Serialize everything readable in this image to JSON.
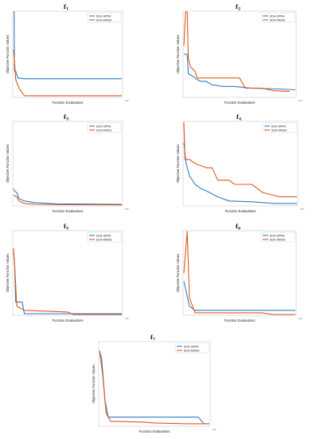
{
  "chart_data": [
    {
      "type": "line",
      "title_base": "f",
      "title_sub": "1",
      "xlabel": "Function Evaluations",
      "ylabel": "Objective Function Values",
      "x_exponent": "×10⁴",
      "legend_position": "top-right",
      "series": [
        {
          "name": "EDA-SPRA",
          "color": "#2e7fc4",
          "points": [
            [
              0,
              1.0
            ],
            [
              0.006,
              1.0
            ],
            [
              0.008,
              0.3
            ],
            [
              0.02,
              0.3
            ],
            [
              0.04,
              0.22
            ],
            [
              0.1,
              0.21
            ],
            [
              1.0,
              0.21
            ]
          ]
        },
        {
          "name": "EDA-MMSS",
          "color": "#e0581d",
          "points": [
            [
              0,
              0.55
            ],
            [
              0.01,
              0.4
            ],
            [
              0.02,
              0.2
            ],
            [
              0.05,
              0.1
            ],
            [
              0.1,
              0.01
            ],
            [
              1.0,
              0.01
            ]
          ]
        }
      ]
    },
    {
      "type": "line",
      "title_base": "f",
      "title_sub": "2",
      "xlabel": "Function Evaluations",
      "ylabel": "Objective Function Values",
      "x_exponent": "×10⁴",
      "legend_position": "top-right",
      "series": [
        {
          "name": "EDA-SPRA",
          "color": "#2e7fc4",
          "points": [
            [
              0,
              0.5
            ],
            [
              0.03,
              0.5
            ],
            [
              0.04,
              0.27
            ],
            [
              0.08,
              0.24
            ],
            [
              0.12,
              0.2
            ],
            [
              0.15,
              0.18
            ],
            [
              0.2,
              0.18
            ],
            [
              0.25,
              0.14
            ],
            [
              0.35,
              0.12
            ],
            [
              0.45,
              0.12
            ],
            [
              0.6,
              0.1
            ],
            [
              0.85,
              0.09
            ],
            [
              1.0,
              0.08
            ]
          ]
        },
        {
          "name": "EDA-MMSS",
          "color": "#e0581d",
          "points": [
            [
              0,
              0.6
            ],
            [
              0.015,
              1.0
            ],
            [
              0.03,
              1.0
            ],
            [
              0.04,
              0.45
            ],
            [
              0.06,
              0.35
            ],
            [
              0.1,
              0.3
            ],
            [
              0.12,
              0.22
            ],
            [
              0.5,
              0.22
            ],
            [
              0.55,
              0.1
            ],
            [
              0.7,
              0.1
            ],
            [
              0.8,
              0.07
            ],
            [
              0.95,
              0.06
            ]
          ]
        }
      ]
    },
    {
      "type": "line",
      "title_base": "f",
      "title_sub": "3",
      "xlabel": "Function Evaluations",
      "ylabel": "Objective Function Values",
      "x_exponent": "×10⁴",
      "legend_position": "top-right",
      "series": [
        {
          "name": "EDA-SPRA",
          "color": "#2e7fc4",
          "points": [
            [
              0,
              0.2
            ],
            [
              0.01,
              0.17
            ],
            [
              0.03,
              0.15
            ],
            [
              0.05,
              0.08
            ],
            [
              0.1,
              0.05
            ],
            [
              0.2,
              0.03
            ],
            [
              0.4,
              0.015
            ],
            [
              1.0,
              0.01
            ]
          ]
        },
        {
          "name": "EDA-MMSS",
          "color": "#e0581d",
          "points": [
            [
              0,
              0.12
            ],
            [
              0.03,
              0.1
            ],
            [
              0.05,
              0.05
            ],
            [
              0.1,
              0.02
            ],
            [
              0.2,
              0.01
            ],
            [
              0.5,
              0.005
            ],
            [
              1.0,
              0.003
            ]
          ]
        }
      ]
    },
    {
      "type": "line",
      "title_base": "f",
      "title_sub": "4",
      "xlabel": "Function Evaluations",
      "ylabel": "Objective Function Values",
      "x_exponent": "×10⁴",
      "legend_position": "top-right",
      "series": [
        {
          "name": "EDA-SPRA",
          "color": "#2e7fc4",
          "points": [
            [
              0,
              0.75
            ],
            [
              0.02,
              0.5
            ],
            [
              0.05,
              0.35
            ],
            [
              0.1,
              0.25
            ],
            [
              0.15,
              0.2
            ],
            [
              0.2,
              0.17
            ],
            [
              0.3,
              0.1
            ],
            [
              0.4,
              0.05
            ],
            [
              0.6,
              0.04
            ],
            [
              0.8,
              0.02
            ],
            [
              1.0,
              0.02
            ]
          ]
        },
        {
          "name": "EDA-MMSS",
          "color": "#e0581d",
          "points": [
            [
              0,
              1.0
            ],
            [
              0.01,
              0.55
            ],
            [
              0.05,
              0.55
            ],
            [
              0.1,
              0.5
            ],
            [
              0.2,
              0.45
            ],
            [
              0.25,
              0.45
            ],
            [
              0.3,
              0.3
            ],
            [
              0.4,
              0.3
            ],
            [
              0.45,
              0.25
            ],
            [
              0.6,
              0.25
            ],
            [
              0.7,
              0.15
            ],
            [
              0.85,
              0.1
            ],
            [
              1.0,
              0.1
            ]
          ]
        }
      ]
    },
    {
      "type": "line",
      "title_base": "f",
      "title_sub": "5",
      "xlabel": "Function Evaluations",
      "ylabel": "Objective Function Values",
      "x_exponent": "×10⁴",
      "legend_position": "top-right",
      "series": [
        {
          "name": "EDA-SPRA",
          "color": "#2e7fc4",
          "points": [
            [
              0,
              0.75
            ],
            [
              0.01,
              0.6
            ],
            [
              0.02,
              0.15
            ],
            [
              0.08,
              0.15
            ],
            [
              0.1,
              0.01
            ],
            [
              1.0,
              0.01
            ]
          ]
        },
        {
          "name": "EDA-MMSS",
          "color": "#e0581d",
          "points": [
            [
              0,
              0.8
            ],
            [
              0.01,
              0.6
            ],
            [
              0.03,
              0.1
            ],
            [
              0.1,
              0.05
            ],
            [
              0.5,
              0.03
            ],
            [
              0.55,
              0.0
            ],
            [
              1.0,
              0.0
            ]
          ]
        }
      ]
    },
    {
      "type": "line",
      "title_base": "f",
      "title_sub": "6",
      "xlabel": "Function Evaluations",
      "ylabel": "Objective Function Values",
      "x_exponent": "×10⁴",
      "legend_position": "top-right",
      "series": [
        {
          "name": "EDA-SPRA",
          "color": "#2e7fc4",
          "points": [
            [
              0,
              0.4
            ],
            [
              0.05,
              0.1
            ],
            [
              0.1,
              0.05
            ],
            [
              0.2,
              0.05
            ],
            [
              0.8,
              0.05
            ],
            [
              1.0,
              0.05
            ]
          ]
        },
        {
          "name": "EDA-MMSS",
          "color": "#e0581d",
          "points": [
            [
              0,
              0.5
            ],
            [
              0.03,
              1.0
            ],
            [
              0.05,
              0.2
            ],
            [
              0.1,
              0.02
            ],
            [
              0.7,
              0.02
            ],
            [
              0.8,
              0.0
            ],
            [
              1.0,
              0.0
            ]
          ]
        }
      ]
    },
    {
      "type": "line",
      "title_base": "f",
      "title_sub": "7",
      "xlabel": "Function Evaluations",
      "ylabel": "Objective Function Values",
      "x_exponent": "×10⁴",
      "legend_position": "top-right",
      "series": [
        {
          "name": "EDA-SPRA",
          "color": "#2e7fc4",
          "points": [
            [
              0,
              0.9
            ],
            [
              0.02,
              0.8
            ],
            [
              0.05,
              0.3
            ],
            [
              0.08,
              0.1
            ],
            [
              0.2,
              0.1
            ],
            [
              0.9,
              0.1
            ],
            [
              0.95,
              0.02
            ],
            [
              1.0,
              0.02
            ]
          ]
        },
        {
          "name": "EDA-MMSS",
          "color": "#e0581d",
          "points": [
            [
              0,
              0.9
            ],
            [
              0.03,
              0.6
            ],
            [
              0.06,
              0.15
            ],
            [
              0.1,
              0.05
            ],
            [
              0.4,
              0.04
            ],
            [
              0.5,
              0.03
            ],
            [
              0.8,
              0.02
            ],
            [
              0.9,
              0.02
            ],
            [
              1.0,
              0.02
            ]
          ]
        }
      ]
    }
  ]
}
